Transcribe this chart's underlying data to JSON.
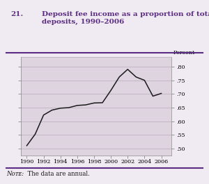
{
  "years": [
    1990,
    1991,
    1992,
    1993,
    1994,
    1995,
    1996,
    1997,
    1998,
    1999,
    2000,
    2001,
    2002,
    2003,
    2004,
    2005,
    2006
  ],
  "values": [
    0.511,
    0.553,
    0.623,
    0.641,
    0.648,
    0.65,
    0.658,
    0.66,
    0.667,
    0.668,
    0.713,
    0.762,
    0.79,
    0.762,
    0.75,
    0.692,
    0.702
  ],
  "title_num": "21.",
  "title_text": "Deposit fee income as a proportion of total domestic\ndeposits, 1990–2006",
  "ylabel": "Percent",
  "note": "Nᴏᴛᴇ:  The data are annual.",
  "ylim": [
    0.475,
    0.835
  ],
  "yticks": [
    0.5,
    0.55,
    0.6,
    0.65,
    0.7,
    0.75,
    0.8
  ],
  "xlim": [
    1989.3,
    2007.2
  ],
  "xticks": [
    1990,
    1992,
    1994,
    1996,
    1998,
    2000,
    2002,
    2004,
    2006
  ],
  "bg_color": "#ddd4e0",
  "fig_bg_color": "#f0eaf2",
  "line_color": "#1a1a1a",
  "title_color": "#5b2d82",
  "grid_color": "#b8aaba",
  "tick_color": "#888888"
}
